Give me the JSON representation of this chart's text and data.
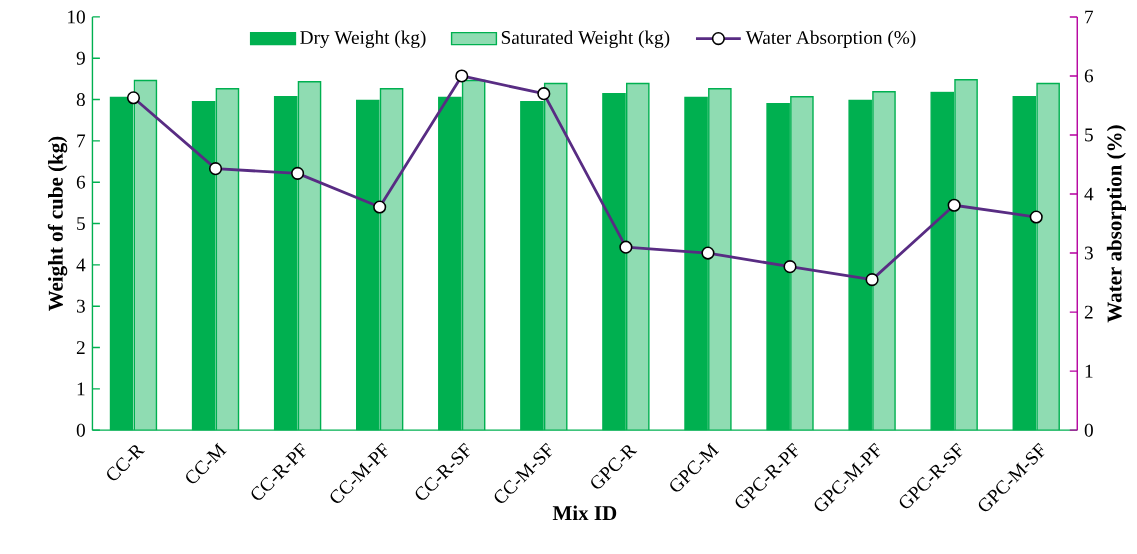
{
  "chart_data": {
    "type": "bar",
    "xlabel": "Mix ID",
    "ylabel": "Weight of cube (kg)",
    "y2label": "Water absorption (%)",
    "categories": [
      "CC-R",
      "CC-M",
      "CC-R-PF",
      "CC-M-PF",
      "CC-R-SF",
      "CC-M-SF",
      "GPC-R",
      "GPC-M",
      "GPC-R-PF",
      "GPC-M-PF",
      "GPC-R-SF",
      "GPC-M-SF"
    ],
    "series": [
      {
        "name": "Dry Weight (kg)",
        "color": "#00b050",
        "values": [
          8.05,
          7.95,
          8.07,
          7.98,
          8.05,
          7.95,
          8.14,
          8.05,
          7.9,
          7.98,
          8.17,
          8.07
        ]
      },
      {
        "name": "Saturated Weight (kg)",
        "color": "#8fdcb2",
        "values": [
          8.46,
          8.26,
          8.43,
          8.26,
          8.46,
          8.39,
          8.39,
          8.26,
          8.07,
          8.19,
          8.48,
          8.39
        ]
      },
      {
        "name": "Water Absorption (%)",
        "type": "line",
        "axis": "y2",
        "marker": "circle",
        "color": "#582c83",
        "values": [
          5.63,
          4.43,
          4.35,
          3.78,
          6.0,
          5.7,
          3.1,
          3.0,
          2.77,
          2.55,
          3.81,
          3.61
        ]
      }
    ],
    "ylim": [
      0,
      10
    ],
    "yticks": [
      0,
      1,
      2,
      3,
      4,
      5,
      6,
      7,
      8,
      9,
      10
    ],
    "y2lim": [
      0,
      7
    ],
    "y2ticks": [
      0,
      1,
      2,
      3,
      4,
      5,
      6,
      7
    ],
    "legend": "top"
  }
}
